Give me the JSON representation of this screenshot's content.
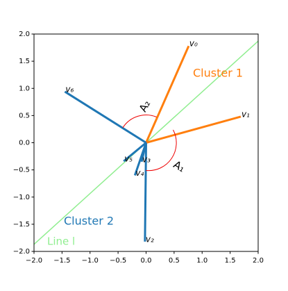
{
  "chart_data": {
    "type": "vector",
    "vectors": [
      {
        "label": "v₀",
        "x": 0.76,
        "y": 1.78,
        "color": "#ff7f0e"
      },
      {
        "label": "v₁",
        "x": 1.69,
        "y": 0.48,
        "color": "#ff7f0e"
      },
      {
        "label": "v₂",
        "x": -0.02,
        "y": -1.82,
        "color": "#1f77b4"
      },
      {
        "label": "v₃",
        "x": -0.08,
        "y": -0.35,
        "color": "#1f77b4"
      },
      {
        "label": "v₄",
        "x": -0.2,
        "y": -0.6,
        "color": "#1f77b4"
      },
      {
        "label": "v₅",
        "x": -0.4,
        "y": -0.34,
        "color": "#1f77b4"
      },
      {
        "label": "v₆",
        "x": -1.45,
        "y": 0.94,
        "color": "#1f77b4"
      }
    ],
    "line": {
      "label": "Line l",
      "x": [
        -2.0,
        2.0
      ],
      "y": [
        -1.87,
        1.87
      ],
      "color": "#90ee90"
    },
    "cluster_labels": [
      "Cluster 1",
      "Cluster 2"
    ],
    "angle_labels": [
      "A₁",
      "A₂"
    ],
    "xlim": [
      -2.0,
      2.0
    ],
    "ylim": [
      -2.0,
      2.0
    ],
    "xticks": [
      {
        "value": -2.0,
        "label": "−2.0"
      },
      {
        "value": -1.5,
        "label": "−1.5"
      },
      {
        "value": -1.0,
        "label": "−1.0"
      },
      {
        "value": -0.5,
        "label": "−0.5"
      },
      {
        "value": 0,
        "label": "0.0"
      },
      {
        "value": 0.5,
        "label": "0.5"
      },
      {
        "value": 1.0,
        "label": "1.0"
      },
      {
        "value": 1.5,
        "label": "1.5"
      },
      {
        "value": 2.0,
        "label": "2.0"
      }
    ],
    "yticks": [
      {
        "value": -2.0,
        "label": "−2.0"
      },
      {
        "value": -1.5,
        "label": "−1.5"
      },
      {
        "value": -1.0,
        "label": "−1.0"
      },
      {
        "value": -0.5,
        "label": "−0.5"
      },
      {
        "value": 0,
        "label": "0.0"
      },
      {
        "value": 0.5,
        "label": "0.5"
      },
      {
        "value": 1.0,
        "label": "1.0"
      },
      {
        "value": 1.5,
        "label": "1.5"
      },
      {
        "value": 2.0,
        "label": "2.0"
      }
    ]
  }
}
